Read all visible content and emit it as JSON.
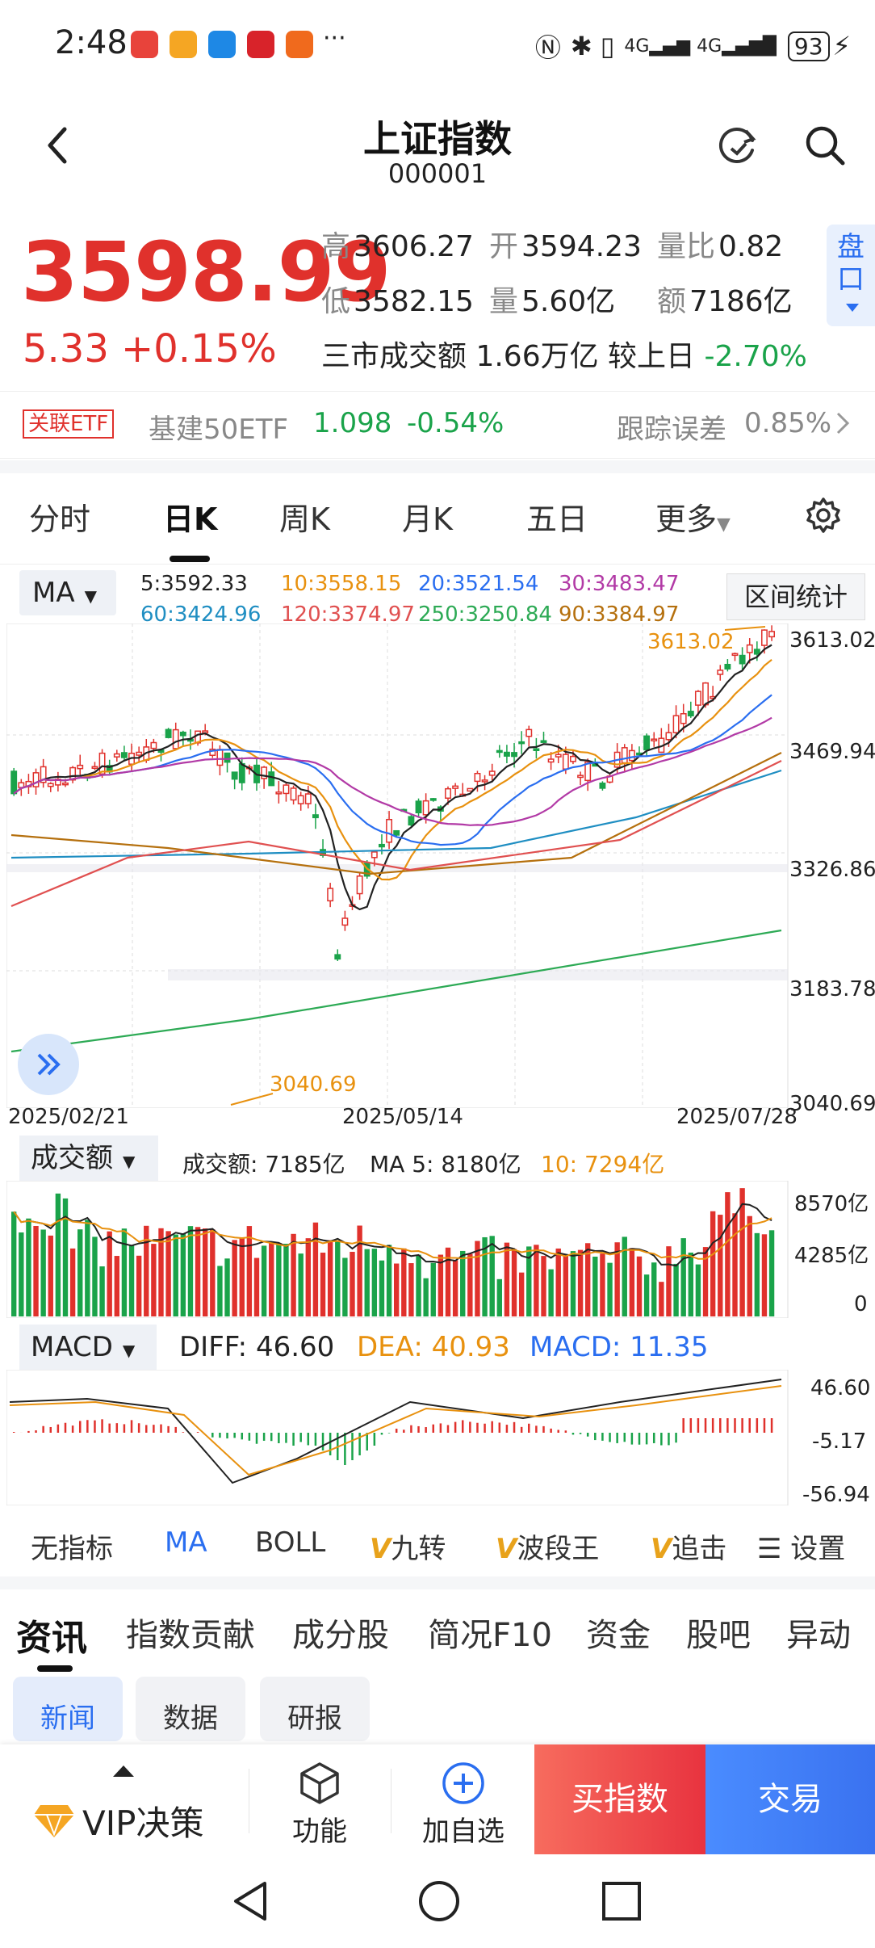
{
  "status": {
    "time": "2:48",
    "more": "···",
    "battery": "93"
  },
  "header": {
    "title": "上证指数",
    "code": "000001"
  },
  "quote": {
    "price": "3598.99",
    "change": "5.33",
    "change_pct": "+0.15%",
    "high_label": "高",
    "high": "3606.27",
    "open_label": "开",
    "open": "3594.23",
    "ratio_label": "量比",
    "ratio": "0.82",
    "low_label": "低",
    "low": "3582.15",
    "volume_label": "量",
    "volume": "5.60亿",
    "amount_label": "额",
    "amount": "7186亿",
    "market_turnover_text": "三市成交额 1.66万亿 较上日",
    "market_turnover_change": "-2.70%",
    "panko_label": "盘口"
  },
  "etf": {
    "tag": "关联ETF",
    "name": "基建50ETF",
    "price": "1.098",
    "pct": "-0.54%",
    "tracking_label": "跟踪误差",
    "tracking_value": "0.85%"
  },
  "period_tabs": [
    "分时",
    "日K",
    "周K",
    "月K",
    "五日",
    "更多"
  ],
  "ma_bar": {
    "select": "MA",
    "values": [
      {
        "text": "5:3592.33",
        "color": "#222222"
      },
      {
        "text": "10:3558.15",
        "color": "#e8910f"
      },
      {
        "text": "20:3521.54",
        "color": "#2a6ef0"
      },
      {
        "text": "30:3483.47",
        "color": "#b23aa6"
      },
      {
        "text": "60:3424.96",
        "color": "#1f8ec2"
      },
      {
        "text": "120:3374.97",
        "color": "#e05050"
      },
      {
        "text": "250:3250.84",
        "color": "#2daa55"
      },
      {
        "text": "90:3384.97",
        "color": "#b5700e"
      }
    ],
    "range_button": "区间统计"
  },
  "kline": {
    "right_axis": [
      "3613.02",
      "3469.94",
      "3326.86",
      "3183.78",
      "3040.69"
    ],
    "max_label": "3613.02",
    "min_label": "3040.69",
    "dates": [
      "2025/02/21",
      "2025/05/14",
      "2025/07/28"
    ]
  },
  "volume": {
    "select": "成交额",
    "amount_text": "成交额: 7185亿",
    "ma5_text": "MA 5: 8180亿",
    "ma10_text": "10: 7294亿",
    "axis": [
      "8570亿",
      "4285亿",
      "0"
    ]
  },
  "macd": {
    "select": "MACD",
    "diff": "DIFF: 46.60",
    "dea": "DEA: 40.93",
    "macd": "MACD: 11.35",
    "axis": [
      "46.60",
      "-5.17",
      "-56.94"
    ]
  },
  "indicator_tabs": {
    "items": [
      "无指标",
      "MA",
      "BOLL",
      "九转",
      "波段王",
      "追击"
    ],
    "settings": "设置"
  },
  "info_tabs": [
    "资讯",
    "指数贡献",
    "成分股",
    "简况F10",
    "资金",
    "股吧",
    "异动"
  ],
  "sub_tabs": [
    "新闻",
    "数据",
    "研报"
  ],
  "bottom": {
    "vip": "VIP决策",
    "func": "功能",
    "add": "加自选",
    "buy": "买指数",
    "trade": "交易"
  },
  "colors": {
    "up": "#e0312c",
    "down": "#1aa34a",
    "accent": "#2a6ef0"
  }
}
